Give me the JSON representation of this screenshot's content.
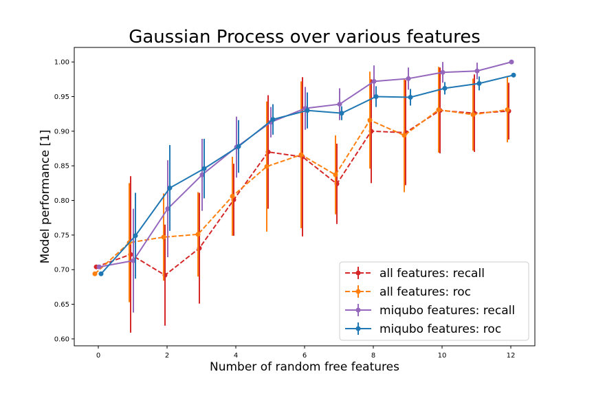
{
  "chart_data": {
    "type": "line",
    "title": "Gaussian Process over various features",
    "xlabel": "Number of random free features",
    "ylabel": "Model performance [1]",
    "xlim": [
      -0.7,
      12.7
    ],
    "ylim": [
      0.59,
      1.021
    ],
    "xticks": [
      0,
      2,
      4,
      6,
      8,
      10,
      12
    ],
    "yticks": [
      0.6,
      0.65,
      0.7,
      0.75,
      0.8,
      0.85,
      0.9,
      0.95,
      1.0
    ],
    "grid": false,
    "legend_position": "lower-right",
    "series": [
      {
        "name": "all features: recall",
        "color": "#d62728",
        "linestyle": "dashed",
        "x": [
          -0.06,
          0.94,
          1.94,
          2.94,
          3.94,
          4.94,
          5.94,
          6.94,
          7.94,
          8.94,
          9.94,
          10.94,
          11.94
        ],
        "y": [
          0.704,
          0.722,
          0.692,
          0.731,
          0.801,
          0.87,
          0.863,
          0.824,
          0.9,
          0.898,
          0.93,
          0.926,
          0.929
        ],
        "err": [
          0.0,
          0.113,
          0.073,
          0.08,
          0.052,
          0.082,
          0.115,
          0.058,
          0.075,
          0.076,
          0.062,
          0.056,
          0.041
        ]
      },
      {
        "name": "all features: roc",
        "color": "#ff7f0e",
        "linestyle": "dashed",
        "x": [
          -0.1,
          0.9,
          1.9,
          2.9,
          3.9,
          4.9,
          5.9,
          6.9,
          7.9,
          8.9,
          9.9,
          10.9,
          11.9
        ],
        "y": [
          0.694,
          0.739,
          0.747,
          0.751,
          0.806,
          0.849,
          0.866,
          0.837,
          0.916,
          0.894,
          0.931,
          0.924,
          0.931
        ],
        "err": [
          0.0,
          0.086,
          0.063,
          0.061,
          0.057,
          0.094,
          0.106,
          0.057,
          0.07,
          0.082,
          0.062,
          0.052,
          0.047
        ]
      },
      {
        "name": "miqubo features: recall",
        "color": "#9467bd",
        "linestyle": "solid",
        "x": [
          0.02,
          1.02,
          2.02,
          3.02,
          4.02,
          5.02,
          6.02,
          7.02,
          8.02,
          9.02,
          10.02,
          11.02,
          12.02
        ],
        "y": [
          0.704,
          0.713,
          0.788,
          0.837,
          0.877,
          0.913,
          0.933,
          0.939,
          0.972,
          0.976,
          0.985,
          0.987,
          1.0
        ],
        "err": [
          0.0,
          0.075,
          0.07,
          0.052,
          0.044,
          0.022,
          0.031,
          0.023,
          0.023,
          0.016,
          0.015,
          0.012,
          0.0
        ]
      },
      {
        "name": "miqubo features: roc",
        "color": "#1f77b4",
        "linestyle": "solid",
        "x": [
          0.08,
          1.08,
          2.08,
          3.08,
          4.08,
          5.08,
          6.08,
          7.08,
          8.08,
          9.08,
          10.08,
          11.08,
          12.08
        ],
        "y": [
          0.694,
          0.749,
          0.818,
          0.846,
          0.878,
          0.917,
          0.93,
          0.926,
          0.95,
          0.949,
          0.962,
          0.969,
          0.981
        ],
        "err": [
          0.0,
          0.062,
          0.062,
          0.043,
          0.038,
          0.022,
          0.026,
          0.01,
          0.015,
          0.012,
          0.009,
          0.01,
          0.0
        ]
      }
    ]
  }
}
